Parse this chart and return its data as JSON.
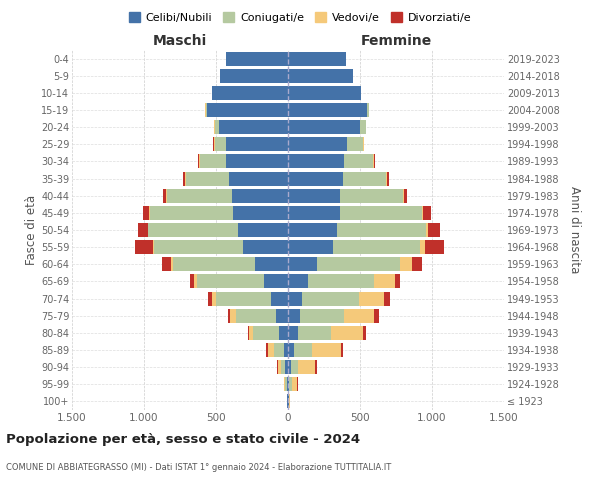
{
  "age_groups": [
    "100+",
    "95-99",
    "90-94",
    "85-89",
    "80-84",
    "75-79",
    "70-74",
    "65-69",
    "60-64",
    "55-59",
    "50-54",
    "45-49",
    "40-44",
    "35-39",
    "30-34",
    "25-29",
    "20-24",
    "15-19",
    "10-14",
    "5-9",
    "0-4"
  ],
  "birth_years": [
    "≤ 1923",
    "1924-1928",
    "1929-1933",
    "1934-1938",
    "1939-1943",
    "1944-1948",
    "1949-1953",
    "1954-1958",
    "1959-1963",
    "1964-1968",
    "1969-1973",
    "1974-1978",
    "1979-1983",
    "1984-1988",
    "1989-1993",
    "1994-1998",
    "1999-2003",
    "2004-2008",
    "2009-2013",
    "2014-2018",
    "2019-2023"
  ],
  "maschi": {
    "celibi": [
      5,
      10,
      20,
      30,
      60,
      80,
      120,
      170,
      230,
      310,
      350,
      380,
      390,
      410,
      430,
      430,
      480,
      560,
      530,
      470,
      430
    ],
    "coniugati": [
      2,
      10,
      30,
      70,
      180,
      280,
      380,
      460,
      570,
      620,
      620,
      580,
      450,
      300,
      180,
      80,
      30,
      10,
      0,
      0,
      0
    ],
    "vedovi": [
      0,
      5,
      20,
      40,
      30,
      40,
      30,
      20,
      15,
      10,
      5,
      5,
      5,
      5,
      5,
      5,
      5,
      5,
      0,
      0,
      0
    ],
    "divorziati": [
      0,
      0,
      5,
      10,
      10,
      20,
      25,
      30,
      60,
      120,
      70,
      40,
      20,
      15,
      10,
      5,
      0,
      0,
      0,
      0,
      0
    ]
  },
  "femmine": {
    "nubili": [
      5,
      10,
      20,
      40,
      70,
      80,
      100,
      140,
      200,
      310,
      340,
      360,
      360,
      380,
      390,
      410,
      500,
      550,
      510,
      450,
      400
    ],
    "coniugate": [
      2,
      15,
      50,
      130,
      230,
      310,
      390,
      460,
      580,
      610,
      620,
      570,
      440,
      300,
      200,
      110,
      40,
      10,
      0,
      0,
      0
    ],
    "vedove": [
      5,
      40,
      120,
      200,
      220,
      210,
      180,
      140,
      80,
      30,
      15,
      5,
      5,
      5,
      5,
      5,
      5,
      5,
      0,
      0,
      0
    ],
    "divorziate": [
      0,
      5,
      10,
      15,
      20,
      35,
      40,
      40,
      70,
      130,
      80,
      60,
      20,
      15,
      10,
      5,
      0,
      0,
      0,
      0,
      0
    ]
  },
  "colors": {
    "celibi": "#4472a8",
    "coniugati": "#b5c9a0",
    "vedovi": "#f5c97a",
    "divorziati": "#c0302a"
  },
  "xlim": 1500,
  "title": "Popolazione per età, sesso e stato civile - 2024",
  "subtitle": "COMUNE DI ABBIATEGRASSO (MI) - Dati ISTAT 1° gennaio 2024 - Elaborazione TUTTITALIA.IT",
  "ylabel_left": "Fasce di età",
  "ylabel_right": "Anni di nascita",
  "xlabel_maschi": "Maschi",
  "xlabel_femmine": "Femmine",
  "legend_labels": [
    "Celibi/Nubili",
    "Coniugati/e",
    "Vedovi/e",
    "Divorziati/e"
  ]
}
